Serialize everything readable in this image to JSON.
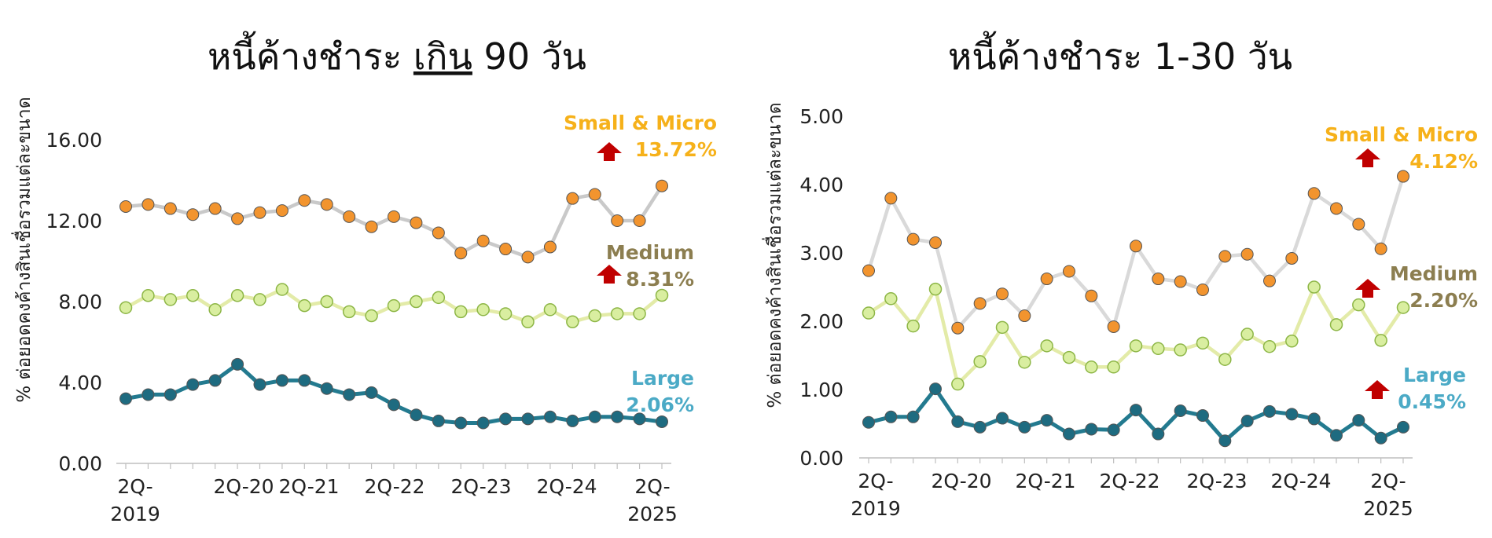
{
  "chart_data": [
    {
      "type": "line",
      "title_prefix": "หนี้ค้างชำระ ",
      "title_emph": "เกิน",
      "title_suffix": " 90 วัน",
      "ylabel": "% ต่อยอดคงค้างสินเชื่อรวมแต่ละขนาด",
      "ylim": [
        0,
        16
      ],
      "y_ticks": [
        "0.00",
        "4.00",
        "8.00",
        "12.00",
        "16.00"
      ],
      "grid": false,
      "x_tick_labels": [
        "2Q-\n2019",
        "2Q-20",
        "2Q-21",
        "2Q-22",
        "2Q-23",
        "2Q-24",
        "2Q-\n2025"
      ],
      "series": [
        {
          "name": "Small & Micro",
          "value_label": "13.72%",
          "label_color": "#F6B11A",
          "line_color": "#C9C9C9",
          "marker_color": "#F2942E",
          "values": [
            12.7,
            12.8,
            12.6,
            12.3,
            12.6,
            12.1,
            12.4,
            12.5,
            13.0,
            12.8,
            12.2,
            11.7,
            12.2,
            11.9,
            11.4,
            10.4,
            11.0,
            10.6,
            10.2,
            10.7,
            13.1,
            13.3,
            12.0,
            12.0,
            13.72
          ]
        },
        {
          "name": "Medium",
          "value_label": "8.31%",
          "label_color": "#8C7E50",
          "line_color": "#E3EBA8",
          "marker_color": "#D9EEA0",
          "values": [
            7.7,
            8.3,
            8.1,
            8.3,
            7.6,
            8.3,
            8.1,
            8.6,
            7.8,
            8.0,
            7.5,
            7.3,
            7.8,
            8.0,
            8.2,
            7.5,
            7.6,
            7.4,
            7.0,
            7.6,
            7.0,
            7.3,
            7.4,
            7.4,
            8.31
          ]
        },
        {
          "name": "Large",
          "value_label": "2.06%",
          "label_color": "#4BAAC6",
          "line_color": "#237A8F",
          "marker_color": "#1E6B80",
          "values": [
            3.2,
            3.4,
            3.4,
            3.9,
            4.1,
            4.9,
            3.9,
            4.1,
            4.1,
            3.7,
            3.4,
            3.5,
            2.9,
            2.4,
            2.1,
            2.0,
            2.0,
            2.2,
            2.2,
            2.3,
            2.1,
            2.3,
            2.3,
            2.2,
            2.06
          ]
        }
      ]
    },
    {
      "type": "line",
      "title_prefix": "หนี้ค้างชำระ 1-30 วัน",
      "title_emph": "",
      "title_suffix": "",
      "ylabel": "% ต่อยอดคงค้างสินเชื่อรวมแต่ละขนาด",
      "ylim": [
        0,
        5
      ],
      "y_ticks": [
        "0.00",
        "1.00",
        "2.00",
        "3.00",
        "4.00",
        "5.00"
      ],
      "grid": false,
      "x_tick_labels": [
        "2Q-\n2019",
        "2Q-20",
        "2Q-21",
        "2Q-22",
        "2Q-23",
        "2Q-24",
        "2Q-\n2025"
      ],
      "series": [
        {
          "name": "Small & Micro",
          "value_label": "4.12%",
          "label_color": "#F6B11A",
          "line_color": "#D9D9D9",
          "marker_color": "#F2942E",
          "values": [
            2.74,
            3.8,
            3.2,
            3.15,
            1.9,
            2.26,
            2.4,
            2.08,
            2.62,
            2.73,
            2.37,
            1.92,
            3.1,
            2.62,
            2.58,
            2.46,
            2.95,
            2.98,
            2.59,
            2.92,
            3.87,
            3.65,
            3.42,
            3.06,
            4.12
          ]
        },
        {
          "name": "Medium",
          "value_label": "2.20%",
          "label_color": "#8C7E50",
          "line_color": "#E3EBA8",
          "marker_color": "#D9EEA0",
          "values": [
            2.12,
            2.33,
            1.93,
            2.47,
            1.08,
            1.41,
            1.91,
            1.4,
            1.64,
            1.47,
            1.33,
            1.33,
            1.64,
            1.6,
            1.58,
            1.68,
            1.44,
            1.81,
            1.63,
            1.71,
            2.5,
            1.95,
            2.24,
            1.72,
            2.2
          ]
        },
        {
          "name": "Large",
          "value_label": "0.45%",
          "label_color": "#4BAAC6",
          "line_color": "#237A8F",
          "marker_color": "#1E6B80",
          "values": [
            0.52,
            0.6,
            0.6,
            1.01,
            0.53,
            0.45,
            0.58,
            0.45,
            0.55,
            0.35,
            0.42,
            0.41,
            0.7,
            0.35,
            0.69,
            0.62,
            0.25,
            0.54,
            0.68,
            0.64,
            0.57,
            0.33,
            0.55,
            0.29,
            0.45
          ]
        }
      ]
    }
  ],
  "colors": {
    "arrow": "#C00000",
    "axis": "#BFBFBF"
  }
}
